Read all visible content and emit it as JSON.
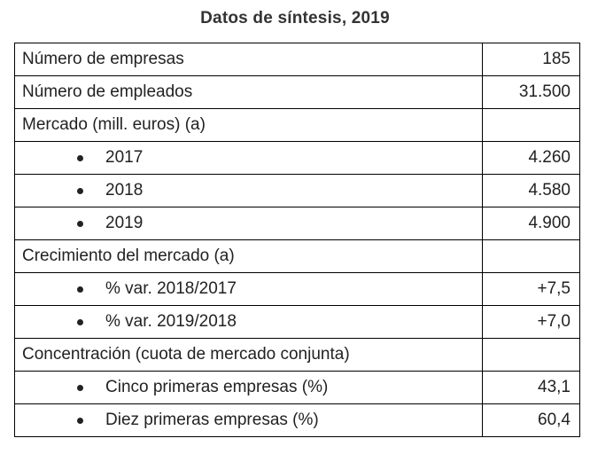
{
  "title": "Datos de síntesis, 2019",
  "rows": [
    {
      "label": "Número de empresas",
      "value": "185",
      "indent": false
    },
    {
      "label": "Número de empleados",
      "value": "31.500",
      "indent": false
    },
    {
      "label": "Mercado (mill. euros) (a)",
      "value": "",
      "indent": false
    },
    {
      "label": "2017",
      "value": "4.260",
      "indent": true
    },
    {
      "label": "2018",
      "value": "4.580",
      "indent": true
    },
    {
      "label": "2019",
      "value": "4.900",
      "indent": true
    },
    {
      "label": "Crecimiento del mercado (a)",
      "value": "",
      "indent": false
    },
    {
      "label": "% var. 2018/2017",
      "value": "+7,5",
      "indent": true
    },
    {
      "label": "% var. 2019/2018",
      "value": "+7,0",
      "indent": true
    },
    {
      "label": "Concentración (cuota de mercado conjunta)",
      "value": "",
      "indent": false
    },
    {
      "label": "Cinco primeras empresas (%)",
      "value": "43,1",
      "indent": true
    },
    {
      "label": "Diez primeras empresas (%)",
      "value": "60,4",
      "indent": true
    }
  ]
}
